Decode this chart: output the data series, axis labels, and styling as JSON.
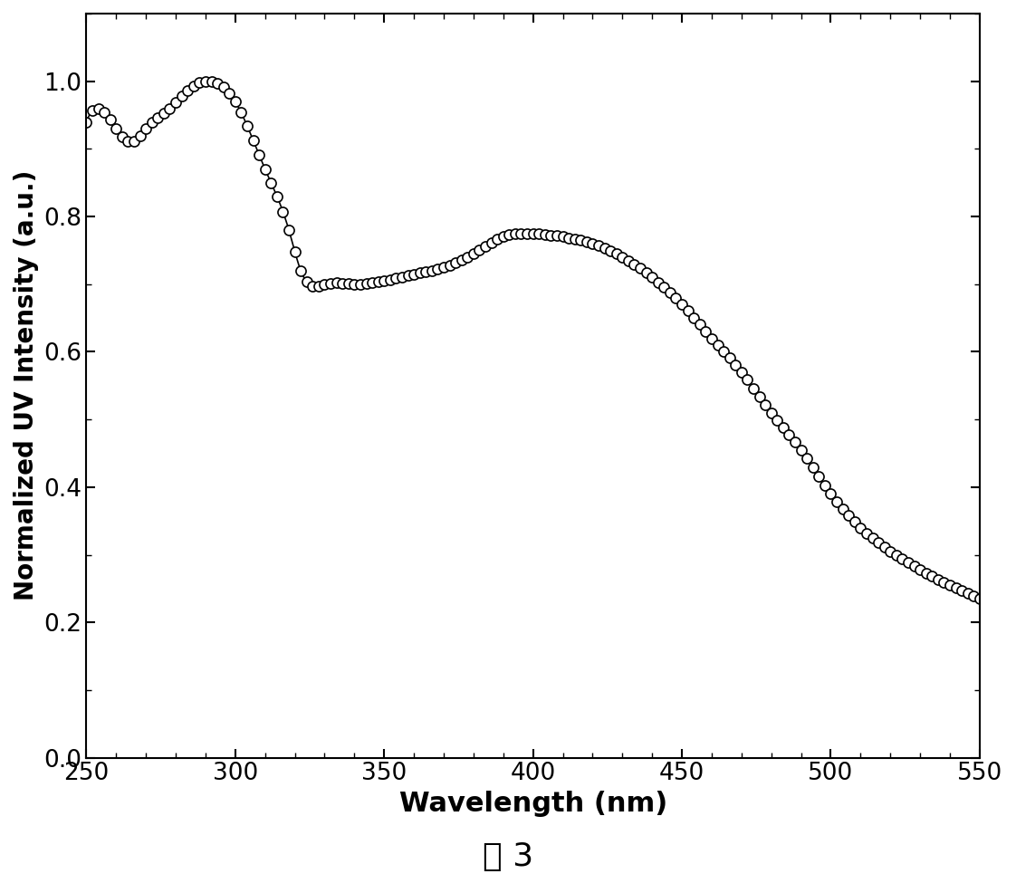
{
  "xlabel": "Wavelength (nm)",
  "ylabel": "Normalized UV Intensity (a.u.)",
  "caption": "图 3",
  "xlim": [
    250,
    550
  ],
  "ylim": [
    0.0,
    1.1
  ],
  "xticks": [
    250,
    300,
    350,
    400,
    450,
    500,
    550
  ],
  "yticks": [
    0.0,
    0.2,
    0.4,
    0.6,
    0.8,
    1.0
  ],
  "marker_color": "white",
  "marker_edge_color": "black",
  "marker_size": 8,
  "line_color": "black",
  "line_width": 1.2,
  "background_color": "white",
  "xlabel_fontsize": 22,
  "ylabel_fontsize": 20,
  "tick_fontsize": 19,
  "caption_fontsize": 26
}
